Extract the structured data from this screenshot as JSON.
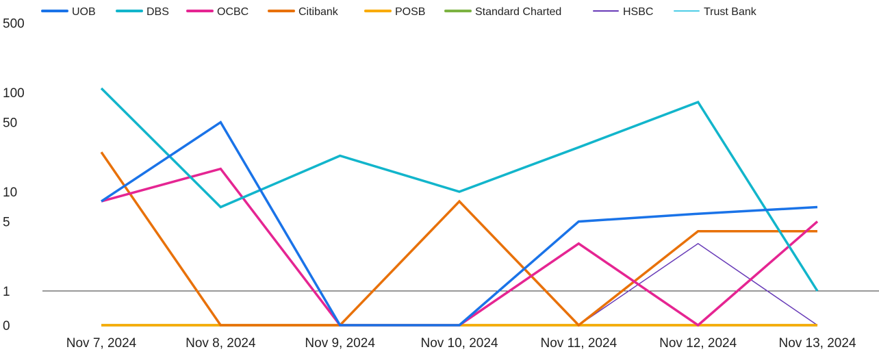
{
  "chart_data": {
    "type": "line",
    "title": "",
    "xlabel": "",
    "ylabel": "",
    "y_scale": "symmetric-log",
    "y_ticks": [
      0,
      1,
      5,
      10,
      50,
      100,
      500
    ],
    "y_tick_labels": [
      "0",
      "1",
      "5",
      "10",
      "50",
      "100",
      "500"
    ],
    "ylim": [
      0,
      500
    ],
    "legend_position": "top",
    "categories": [
      "Nov 7, 2024",
      "Nov 8, 2024",
      "Nov 9, 2024",
      "Nov 10, 2024",
      "Nov 11, 2024",
      "Nov 12, 2024",
      "Nov 13, 2024"
    ],
    "series": [
      {
        "name": "UOB",
        "color": "#1a73e8",
        "values": [
          8,
          50,
          0,
          0,
          5,
          6,
          7
        ]
      },
      {
        "name": "DBS",
        "color": "#12b5cb",
        "values": [
          110,
          7,
          23,
          10,
          28,
          80,
          1
        ]
      },
      {
        "name": "OCBC",
        "color": "#e52592",
        "values": [
          8,
          17,
          0,
          0,
          3,
          0,
          5
        ]
      },
      {
        "name": "Citibank",
        "color": "#e8710a",
        "values": [
          25,
          0,
          0,
          8,
          0,
          4,
          4
        ]
      },
      {
        "name": "POSB",
        "color": "#f9ab00",
        "values": [
          0,
          0,
          0,
          0,
          0,
          0,
          0
        ]
      },
      {
        "name": "Standard Charted",
        "color": "#7cb342",
        "values": [
          0,
          0,
          0,
          0,
          0,
          0,
          0
        ]
      },
      {
        "name": "HSBC",
        "color": "#673ab7",
        "values": [
          0,
          0,
          0,
          0,
          0,
          3,
          0
        ]
      },
      {
        "name": "Trust Bank",
        "color": "#4ecde6",
        "values": [
          0,
          0,
          0,
          0,
          0,
          0,
          0
        ]
      }
    ]
  }
}
